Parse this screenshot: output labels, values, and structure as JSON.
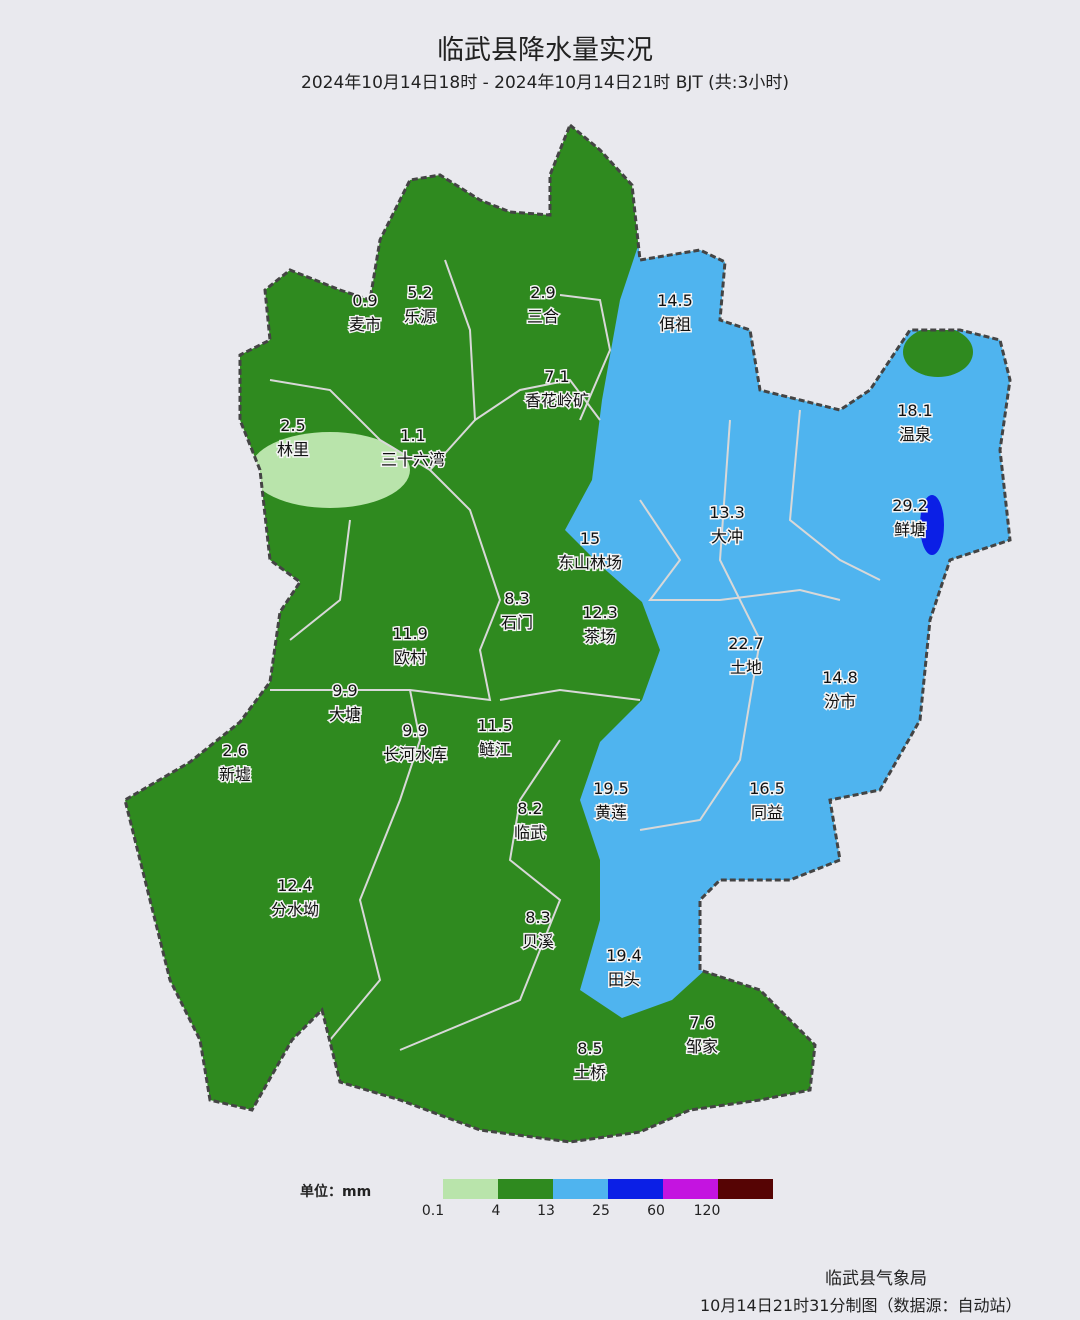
{
  "header": {
    "title": "临武县降水量实况",
    "subtitle": "2024年10月14日18时 - 2024年10月14日21时 BJT (共:3小时)"
  },
  "colors": {
    "light_green": "#b9e4ab",
    "green": "#2f8a1f",
    "blue": "#4fb4ef",
    "dark_blue": "#0b1fe6",
    "purple": "#c414e0",
    "dark_red": "#560404",
    "background": "#e9e9ee"
  },
  "stations": [
    {
      "name": "麦市",
      "value": "0.9"
    },
    {
      "name": "乐源",
      "value": "5.2"
    },
    {
      "name": "三合",
      "value": "2.9"
    },
    {
      "name": "佴祖",
      "value": "14.5"
    },
    {
      "name": "香花岭矿",
      "value": "7.1"
    },
    {
      "name": "温泉",
      "value": "18.1"
    },
    {
      "name": "林里",
      "value": "2.5"
    },
    {
      "name": "三十六湾",
      "value": "1.1"
    },
    {
      "name": "东山林场",
      "value": "15"
    },
    {
      "name": "大冲",
      "value": "13.3"
    },
    {
      "name": "鲜塘",
      "value": "29.2"
    },
    {
      "name": "石门",
      "value": "8.3"
    },
    {
      "name": "茶场",
      "value": "12.3"
    },
    {
      "name": "欧村",
      "value": "11.9"
    },
    {
      "name": "土地",
      "value": "22.7"
    },
    {
      "name": "汾市",
      "value": "14.8"
    },
    {
      "name": "大塘",
      "value": "9.9"
    },
    {
      "name": "长河水库",
      "value": "9.9"
    },
    {
      "name": "鲢江",
      "value": "11.5"
    },
    {
      "name": "新墟",
      "value": "2.6"
    },
    {
      "name": "黄莲",
      "value": "19.5"
    },
    {
      "name": "同益",
      "value": "16.5"
    },
    {
      "name": "临武",
      "value": "8.2"
    },
    {
      "name": "分水坳",
      "value": "12.4"
    },
    {
      "name": "贝溪",
      "value": "8.3"
    },
    {
      "name": "田头",
      "value": "19.4"
    },
    {
      "name": "邹家",
      "value": "7.6"
    },
    {
      "name": "土桥",
      "value": "8.5"
    }
  ],
  "legend": {
    "unit_label": "单位：mm",
    "ticks": [
      "0.1",
      "4",
      "13",
      "25",
      "60",
      "120"
    ]
  },
  "footer": {
    "agency": "临武县气象局",
    "made": "10月14日21时31分制图（数据源：自动站）"
  }
}
